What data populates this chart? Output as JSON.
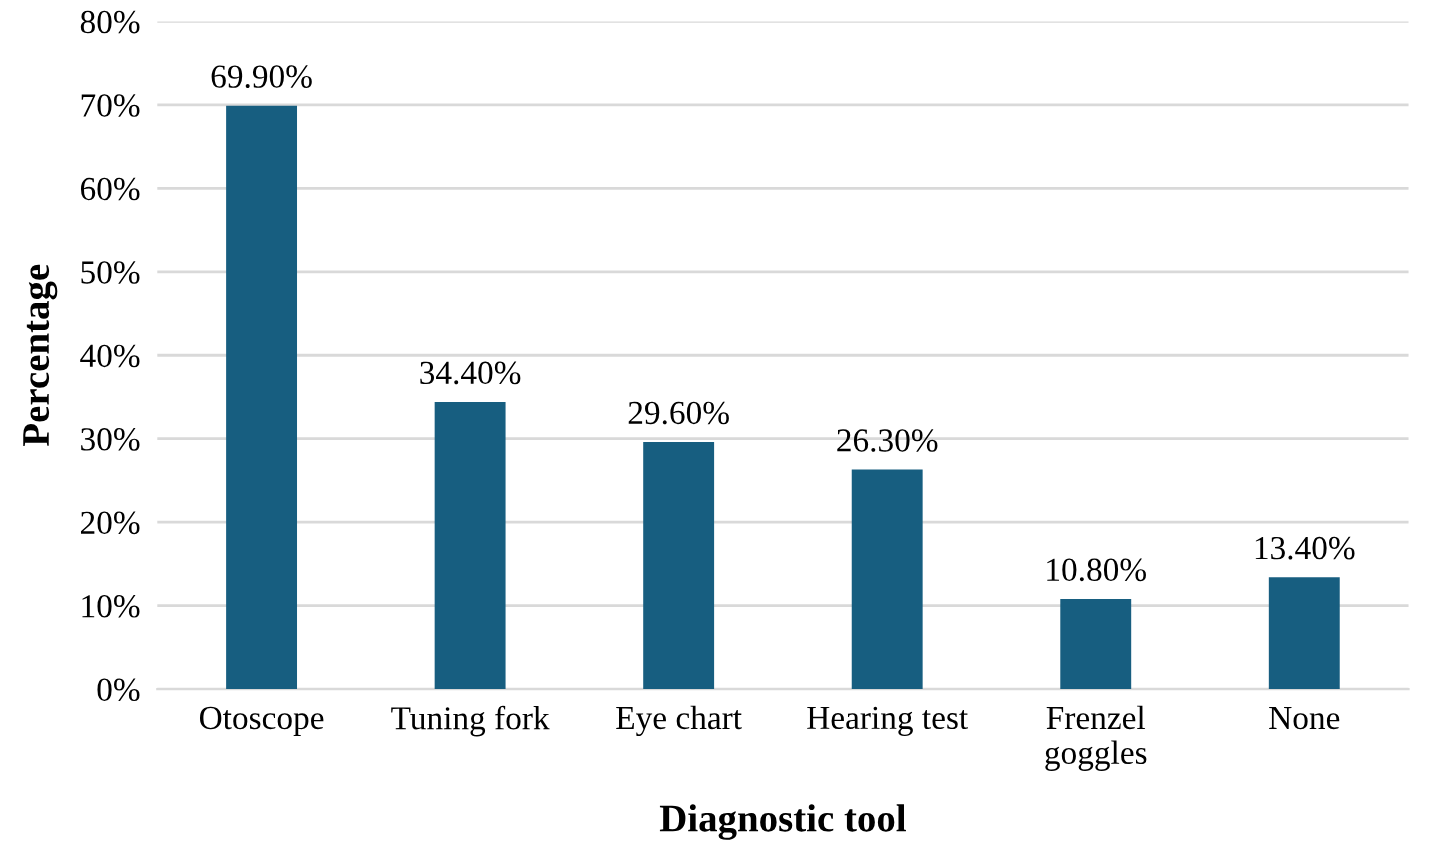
{
  "chart_data": {
    "type": "bar",
    "xlabel": "Diagnostic tool",
    "ylabel": "Percentage",
    "categories": [
      "Otoscope",
      "Tuning fork",
      "Eye chart",
      "Hearing test",
      "Frenzel goggles",
      "None"
    ],
    "values": [
      69.9,
      34.4,
      29.6,
      26.3,
      10.8,
      13.4
    ],
    "value_labels": [
      "69.90%",
      "34.40%",
      "29.60%",
      "26.30%",
      "10.80%",
      "13.40%"
    ],
    "color": "#175e80",
    "ylim": [
      0,
      80
    ],
    "yticks": [
      {
        "value": 0,
        "label": "0%"
      },
      {
        "value": 10,
        "label": "10%"
      },
      {
        "value": 20,
        "label": "20%"
      },
      {
        "value": 30,
        "label": "30%"
      },
      {
        "value": 40,
        "label": "40%"
      },
      {
        "value": 50,
        "label": "50%"
      },
      {
        "value": 60,
        "label": "60%"
      },
      {
        "value": 70,
        "label": "70%"
      },
      {
        "value": 80,
        "label": "80%"
      }
    ],
    "grid": "y",
    "legend": false
  }
}
